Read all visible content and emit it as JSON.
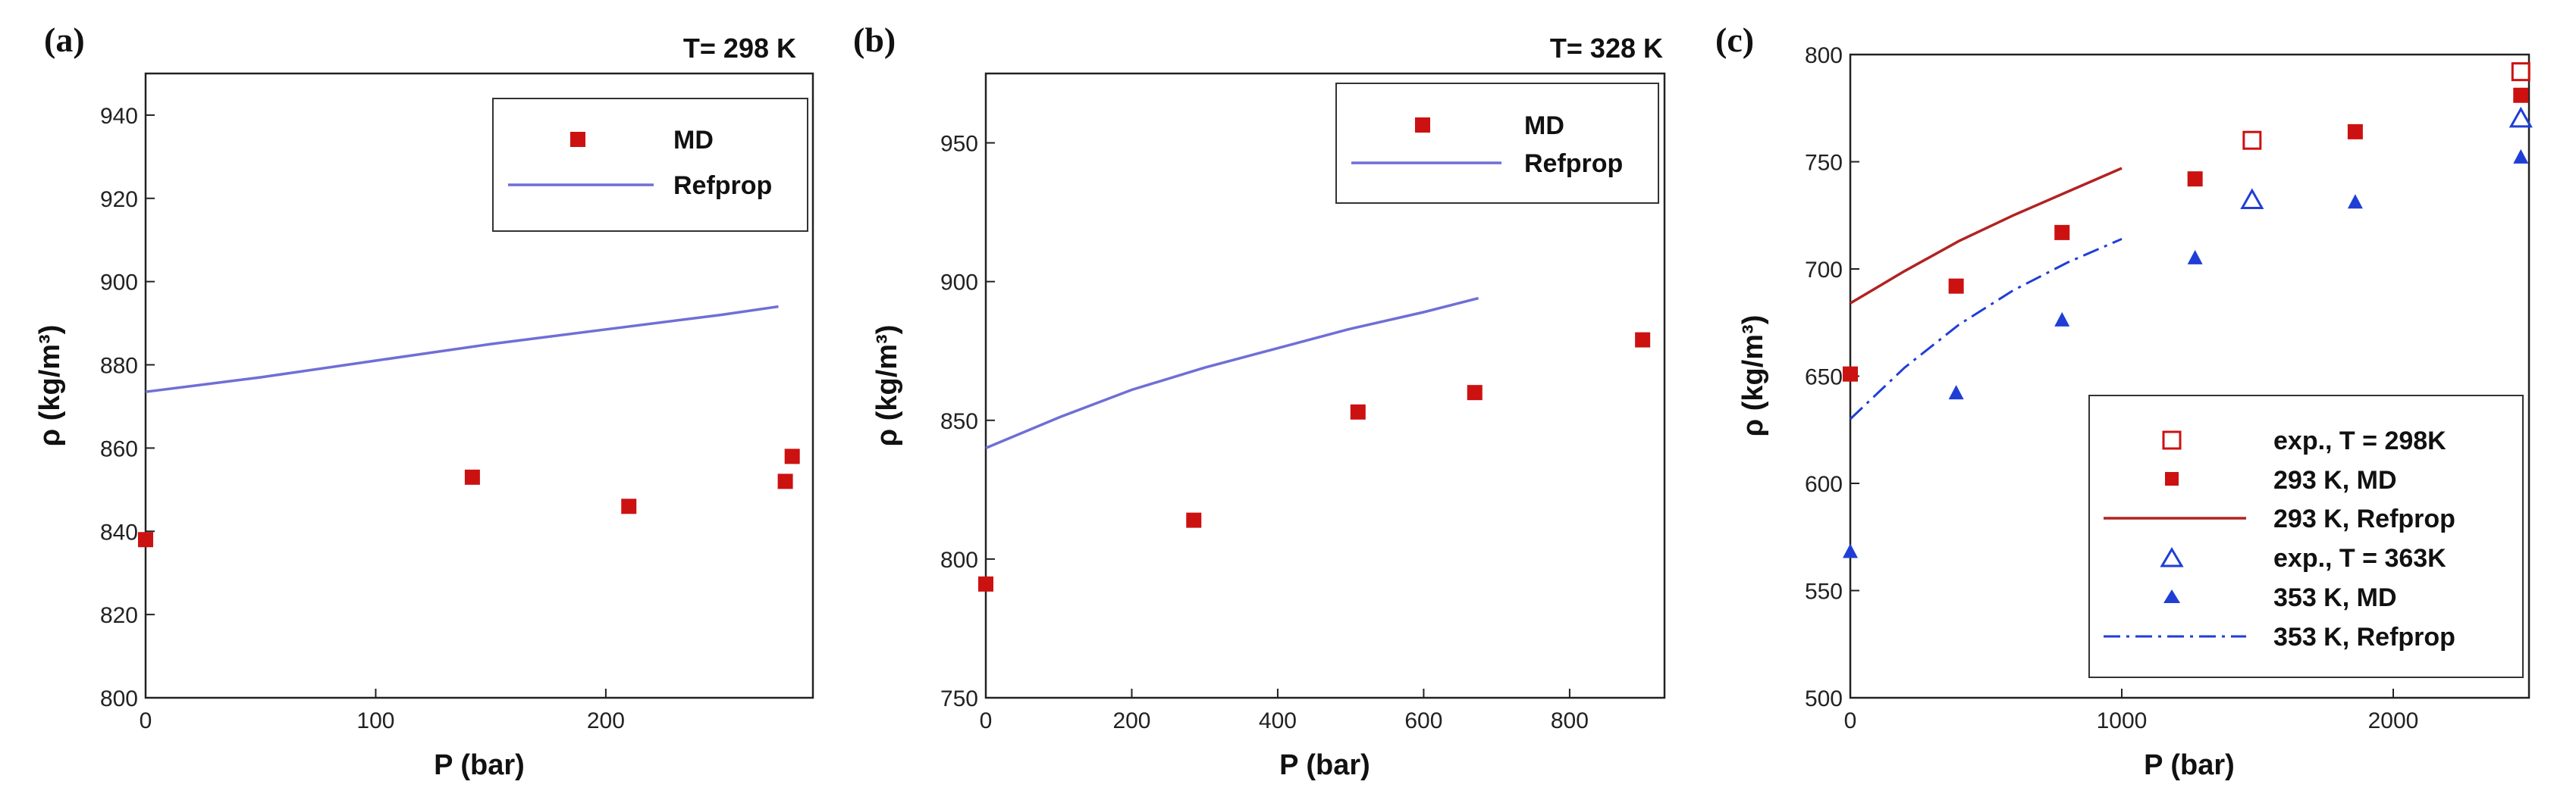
{
  "colors": {
    "md_marker": "#cc1111",
    "refprop_line": "#6f6fd6",
    "red_line": "#b22222",
    "blue": "#1f3ed6",
    "axis": "#222222"
  },
  "chart_data": [
    {
      "type": "scatter",
      "panel_label": "(a)",
      "temperature_label": "T= 298 K",
      "xlabel": "P (bar)",
      "ylabel": "ρ (kg/m³)",
      "xlim": [
        0,
        290
      ],
      "ylim": [
        800,
        950
      ],
      "xticks": [
        0,
        100,
        200
      ],
      "yticks": [
        800,
        820,
        840,
        860,
        880,
        900,
        920,
        940
      ],
      "legend_position": "top-right",
      "series": [
        {
          "name": "MD",
          "kind": "square",
          "color": "#cc1111",
          "points": [
            [
              0,
              838
            ],
            [
              142,
              853
            ],
            [
              210,
              846
            ],
            [
              278,
              852
            ],
            [
              281,
              858
            ]
          ]
        },
        {
          "name": "Refprop",
          "kind": "line",
          "color": "#6f6fd6",
          "points": [
            [
              0,
              873.5
            ],
            [
              50,
              877
            ],
            [
              100,
              881
            ],
            [
              150,
              885
            ],
            [
              200,
              888.5
            ],
            [
              250,
              892
            ],
            [
              275,
              894
            ]
          ]
        }
      ]
    },
    {
      "type": "scatter",
      "panel_label": "(b)",
      "temperature_label": "T= 328 K",
      "xlabel": "P (bar)",
      "ylabel": "ρ (kg/m³)",
      "xlim": [
        0,
        930
      ],
      "ylim": [
        750,
        975
      ],
      "xticks": [
        0,
        200,
        400,
        600,
        800
      ],
      "yticks": [
        750,
        800,
        850,
        900,
        950
      ],
      "legend_position": "top-right",
      "series": [
        {
          "name": "MD",
          "kind": "square",
          "color": "#cc1111",
          "points": [
            [
              0,
              791
            ],
            [
              285,
              814
            ],
            [
              510,
              853
            ],
            [
              670,
              860
            ],
            [
              900,
              879
            ]
          ]
        },
        {
          "name": "Refprop",
          "kind": "line",
          "color": "#6f6fd6",
          "points": [
            [
              0,
              840
            ],
            [
              100,
              851
            ],
            [
              200,
              861
            ],
            [
              300,
              869
            ],
            [
              400,
              876
            ],
            [
              500,
              883
            ],
            [
              600,
              889
            ],
            [
              675,
              894
            ]
          ]
        }
      ]
    },
    {
      "type": "scatter",
      "panel_label": "(c)",
      "xlabel": "P (bar)",
      "ylabel": "ρ (kg/m³)",
      "xlim": [
        0,
        2500
      ],
      "ylim": [
        500,
        800
      ],
      "xticks": [
        0,
        1000,
        2000
      ],
      "yticks": [
        500,
        550,
        600,
        650,
        700,
        750,
        800
      ],
      "legend_position": "bottom-right",
      "series": [
        {
          "name": "exp., T = 298K",
          "kind": "square-open",
          "color": "#cc1111",
          "points": [
            [
              1480,
              760
            ],
            [
              2470,
              792
            ]
          ]
        },
        {
          "name": "293 K, MD",
          "kind": "square",
          "color": "#cc1111",
          "points": [
            [
              0,
              651
            ],
            [
              390,
              692
            ],
            [
              780,
              717
            ],
            [
              1270,
              742
            ],
            [
              1860,
              764
            ],
            [
              2470,
              781
            ]
          ]
        },
        {
          "name": "293 K, Refprop",
          "kind": "line",
          "color": "#b22222",
          "points": [
            [
              0,
              684
            ],
            [
              200,
              699
            ],
            [
              400,
              713
            ],
            [
              600,
              725
            ],
            [
              800,
              736
            ],
            [
              1000,
              747
            ]
          ]
        },
        {
          "name": "exp., T = 363K",
          "kind": "triangle-open",
          "color": "#1f3ed6",
          "points": [
            [
              1480,
              732
            ],
            [
              2470,
              770
            ]
          ]
        },
        {
          "name": "353 K, MD",
          "kind": "triangle",
          "color": "#1f3ed6",
          "points": [
            [
              0,
              568
            ],
            [
              390,
              642
            ],
            [
              780,
              676
            ],
            [
              1270,
              705
            ],
            [
              1860,
              731
            ],
            [
              2470,
              752
            ]
          ]
        },
        {
          "name": "353 K, Refprop",
          "kind": "dashdot",
          "color": "#1f3ed6",
          "points": [
            [
              0,
              630
            ],
            [
              200,
              654
            ],
            [
              400,
              674
            ],
            [
              600,
              690
            ],
            [
              800,
              703
            ],
            [
              1000,
              714
            ]
          ]
        }
      ]
    }
  ]
}
